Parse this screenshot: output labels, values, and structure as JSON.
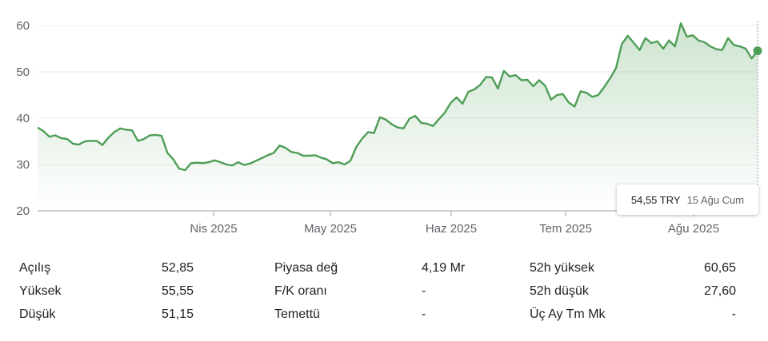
{
  "chart_data": {
    "type": "area",
    "ylim": [
      20,
      60
    ],
    "yticks": [
      20,
      30,
      40,
      50,
      60
    ],
    "xticks": [
      "Nis 2025",
      "May 2025",
      "Haz 2025",
      "Tem 2025",
      "Ağu 2025"
    ],
    "series": [
      {
        "values": [
          38.0,
          37.2,
          36.0,
          36.3,
          35.7,
          35.5,
          34.5,
          34.3,
          35.0,
          35.1,
          35.1,
          34.2,
          35.8,
          37.0,
          37.8,
          37.5,
          37.4,
          35.1,
          35.5,
          36.3,
          36.4,
          36.2,
          32.5,
          31.1,
          29.1,
          28.8,
          30.3,
          30.4,
          30.3,
          30.5,
          30.9,
          30.5,
          30.0,
          29.8,
          30.5,
          29.9,
          30.2,
          30.8,
          31.4,
          32.0,
          32.5,
          34.1,
          33.6,
          32.7,
          32.5,
          31.9,
          31.9,
          32.0,
          31.5,
          31.1,
          30.3,
          30.5,
          30.0,
          30.8,
          33.8,
          35.6,
          37.0,
          36.8,
          40.2,
          39.7,
          38.7,
          38.0,
          37.8,
          39.9,
          40.5,
          39.0,
          38.8,
          38.3,
          39.8,
          41.2,
          43.3,
          44.5,
          43.1,
          45.7,
          46.2,
          47.2,
          48.9,
          48.8,
          46.4,
          50.2,
          49.0,
          49.3,
          48.2,
          48.3,
          46.9,
          48.2,
          47.0,
          44.0,
          45.0,
          45.2,
          43.4,
          42.5,
          45.8,
          45.5,
          44.6,
          45.0,
          46.7,
          48.6,
          50.8,
          56.0,
          57.8,
          56.3,
          54.7,
          57.3,
          56.2,
          56.6,
          55.0,
          56.8,
          55.5,
          60.5,
          57.6,
          57.9,
          56.8,
          56.4,
          55.5,
          54.9,
          54.7,
          57.3,
          55.8,
          55.5,
          55.0,
          52.9,
          54.55
        ]
      }
    ],
    "grid": true,
    "line_color": "#4e9e57",
    "fill_color": "#4e9e57"
  },
  "tooltip": {
    "price": "54,55 TRY",
    "date": "15 Ağu Cum"
  },
  "stats": {
    "col1": [
      {
        "label": "Açılış",
        "value": "52,85"
      },
      {
        "label": "Yüksek",
        "value": "55,55"
      },
      {
        "label": "Düşük",
        "value": "51,15"
      }
    ],
    "col2": [
      {
        "label": "Piyasa değ",
        "value": "4,19 Mr"
      },
      {
        "label": "F/K oranı",
        "value": "-"
      },
      {
        "label": "Temettü",
        "value": "-"
      }
    ],
    "col3": [
      {
        "label": "52h yüksek",
        "value": "60,65"
      },
      {
        "label": "52h düşük",
        "value": "27,60"
      },
      {
        "label": "Üç Ay Tm Mk",
        "value": "-"
      }
    ]
  }
}
